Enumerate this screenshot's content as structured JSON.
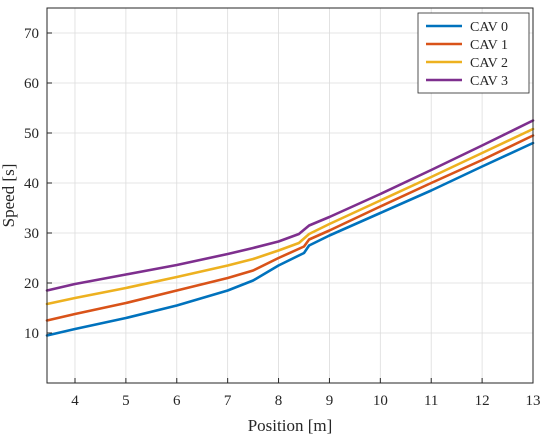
{
  "chart_data": {
    "type": "line",
    "title": "",
    "xlabel": "Position [m]",
    "ylabel": "Speed [s]",
    "xlim": [
      3.45,
      13
    ],
    "ylim": [
      0,
      75
    ],
    "xticks": [
      4,
      5,
      6,
      7,
      8,
      9,
      10,
      11,
      12,
      13
    ],
    "yticks": [
      10,
      20,
      30,
      40,
      50,
      60,
      70
    ],
    "grid": true,
    "legend_position": "top-right",
    "series": [
      {
        "name": "CAV 0",
        "color": "#0072BD",
        "x": [
          3.45,
          4,
          5,
          6,
          7,
          7.5,
          8,
          8.5,
          8.6,
          9,
          10,
          11,
          12,
          13
        ],
        "y": [
          9.5,
          10.8,
          13,
          15.5,
          18.5,
          20.5,
          23.5,
          26,
          27.5,
          29.5,
          34,
          38.5,
          43.3,
          48
        ]
      },
      {
        "name": "CAV 1",
        "color": "#D95319",
        "x": [
          3.45,
          4,
          5,
          6,
          7,
          7.5,
          8,
          8.5,
          8.6,
          9,
          10,
          11,
          12,
          13
        ],
        "y": [
          12.5,
          13.8,
          16,
          18.5,
          21,
          22.5,
          25,
          27.3,
          28.7,
          30.5,
          35.3,
          40,
          44.6,
          49.5
        ]
      },
      {
        "name": "CAV 2",
        "color": "#EDB120",
        "x": [
          3.45,
          4,
          5,
          6,
          7,
          7.5,
          8,
          8.4,
          8.6,
          9,
          10,
          11,
          12,
          13
        ],
        "y": [
          15.8,
          17,
          19,
          21.2,
          23.5,
          24.8,
          26.5,
          28,
          29.8,
          31.8,
          36.5,
          41.2,
          46,
          50.8
        ]
      },
      {
        "name": "CAV 3",
        "color": "#7E2F8E",
        "x": [
          3.45,
          4,
          5,
          6,
          7,
          7.5,
          8,
          8.4,
          8.6,
          9,
          10,
          11,
          12,
          13
        ],
        "y": [
          18.5,
          19.8,
          21.7,
          23.6,
          25.8,
          27,
          28.3,
          29.8,
          31.5,
          33.2,
          37.8,
          42.6,
          47.5,
          52.5
        ]
      }
    ]
  }
}
